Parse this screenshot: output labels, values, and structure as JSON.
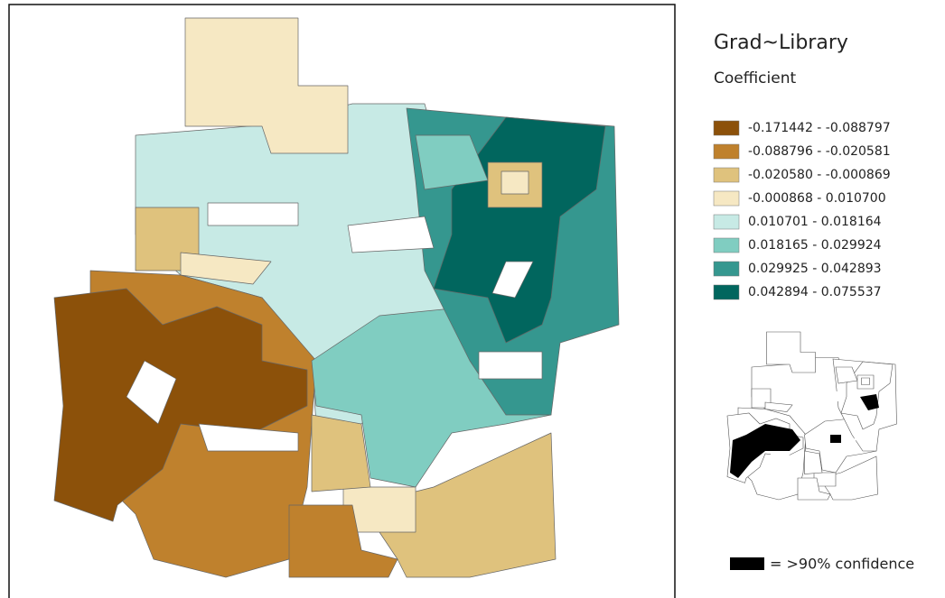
{
  "title": "Grad~Library",
  "subtitle": "Coefficient",
  "legend": [
    {
      "label": "-0.171442 - -0.088797",
      "color": "#8c510a"
    },
    {
      "label": "-0.088796 - -0.020581",
      "color": "#bf812d"
    },
    {
      "label": "-0.020580 - -0.000869",
      "color": "#dfc27d"
    },
    {
      "label": "-0.000868 - 0.010700",
      "color": "#f6e8c3"
    },
    {
      "label": "0.010701 - 0.018164",
      "color": "#c7eae5"
    },
    {
      "label": "0.018165 - 0.029924",
      "color": "#80cdc1"
    },
    {
      "label": "0.029925 - 0.042893",
      "color": "#35978f"
    },
    {
      "label": "0.042894 - 0.075537",
      "color": "#01665e"
    }
  ],
  "confidence_label": "= >90% confidence"
}
